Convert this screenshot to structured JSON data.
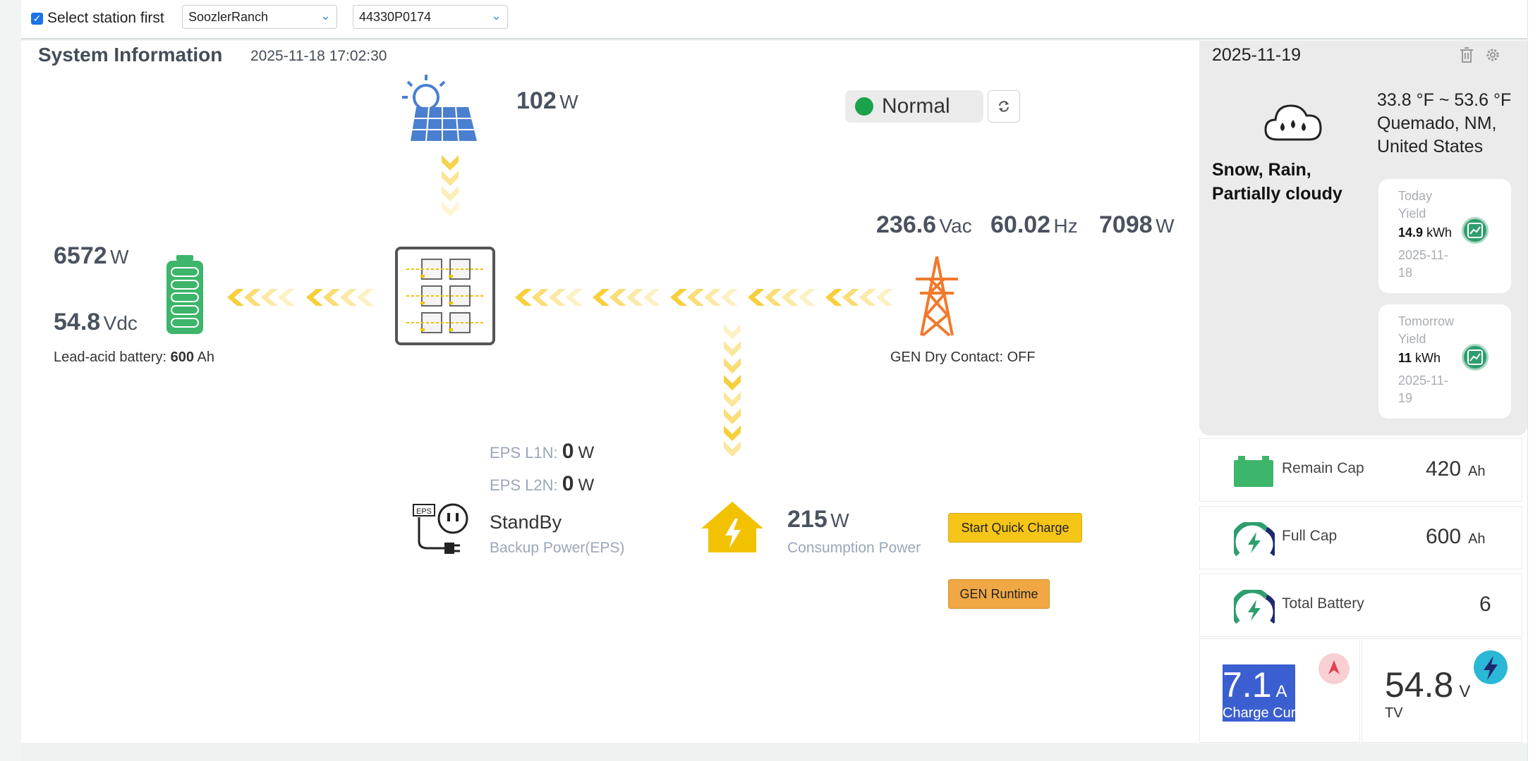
{
  "topbar": {
    "checkbox_label": "Select station first",
    "station": "SoozlerRanch",
    "device": "44330P0174"
  },
  "system": {
    "title": "System Information",
    "timestamp": "2025-11-18 17:02:30",
    "status": "Normal",
    "solar": {
      "value": "102",
      "unit": "W"
    },
    "battery": {
      "power_value": "6572",
      "power_unit": "W",
      "voltage_value": "54.8",
      "voltage_unit": "Vdc",
      "type_label": "Lead-acid battery:",
      "capacity": "600",
      "capacity_unit": "Ah"
    },
    "grid": {
      "voltage_value": "236.6",
      "voltage_unit": "Vac",
      "freq_value": "60.02",
      "freq_unit": "Hz",
      "power_value": "7098",
      "power_unit": "W",
      "gen_label": "GEN Dry Contact: OFF"
    },
    "eps": {
      "l1_label": "EPS L1N:",
      "l1_value": "0",
      "l1_unit": "W",
      "l2_label": "EPS L2N:",
      "l2_value": "0",
      "l2_unit": "W",
      "status": "StandBy",
      "caption": "Backup Power(EPS)",
      "icon_text": "EPS"
    },
    "load": {
      "value": "215",
      "unit": "W",
      "caption": "Consumption Power"
    },
    "buttons": {
      "quick_charge": "Start Quick Charge",
      "gen_runtime": "GEN Runtime"
    }
  },
  "weather": {
    "date": "2025-11-19",
    "temp": "33.8 °F ~ 53.6 °F",
    "location": "Quemado, NM, United States",
    "desc": "Snow, Rain, Partially cloudy",
    "today": {
      "label1": "Today",
      "label2": "Yield",
      "value": "14.9",
      "unit": "kWh",
      "date1": "2025-11-",
      "date2": "18"
    },
    "tomorrow": {
      "label1": "Tomorrow",
      "label2": "Yield",
      "value": "11",
      "unit": "kWh",
      "date1": "2025-11-",
      "date2": "19"
    }
  },
  "stats": {
    "remain_label": "Remain Cap",
    "remain_value": "420",
    "remain_unit": "Ah",
    "full_label": "Full Cap",
    "full_value": "600",
    "full_unit": "Ah",
    "total_label": "Total Battery",
    "total_value": "6",
    "charge_value": "7.1",
    "charge_unit": "A",
    "charge_label": "Charge Cur",
    "tv_value": "54.8",
    "tv_unit": "V",
    "tv_label": "TV"
  },
  "colors": {
    "accent": "#1a73e8",
    "normal": "#1aa34a",
    "flow": "#f6cf3a",
    "tower": "#f07a2c",
    "house": "#f2c200",
    "battery": "#3db56a",
    "solar": "#4a7fd0"
  }
}
